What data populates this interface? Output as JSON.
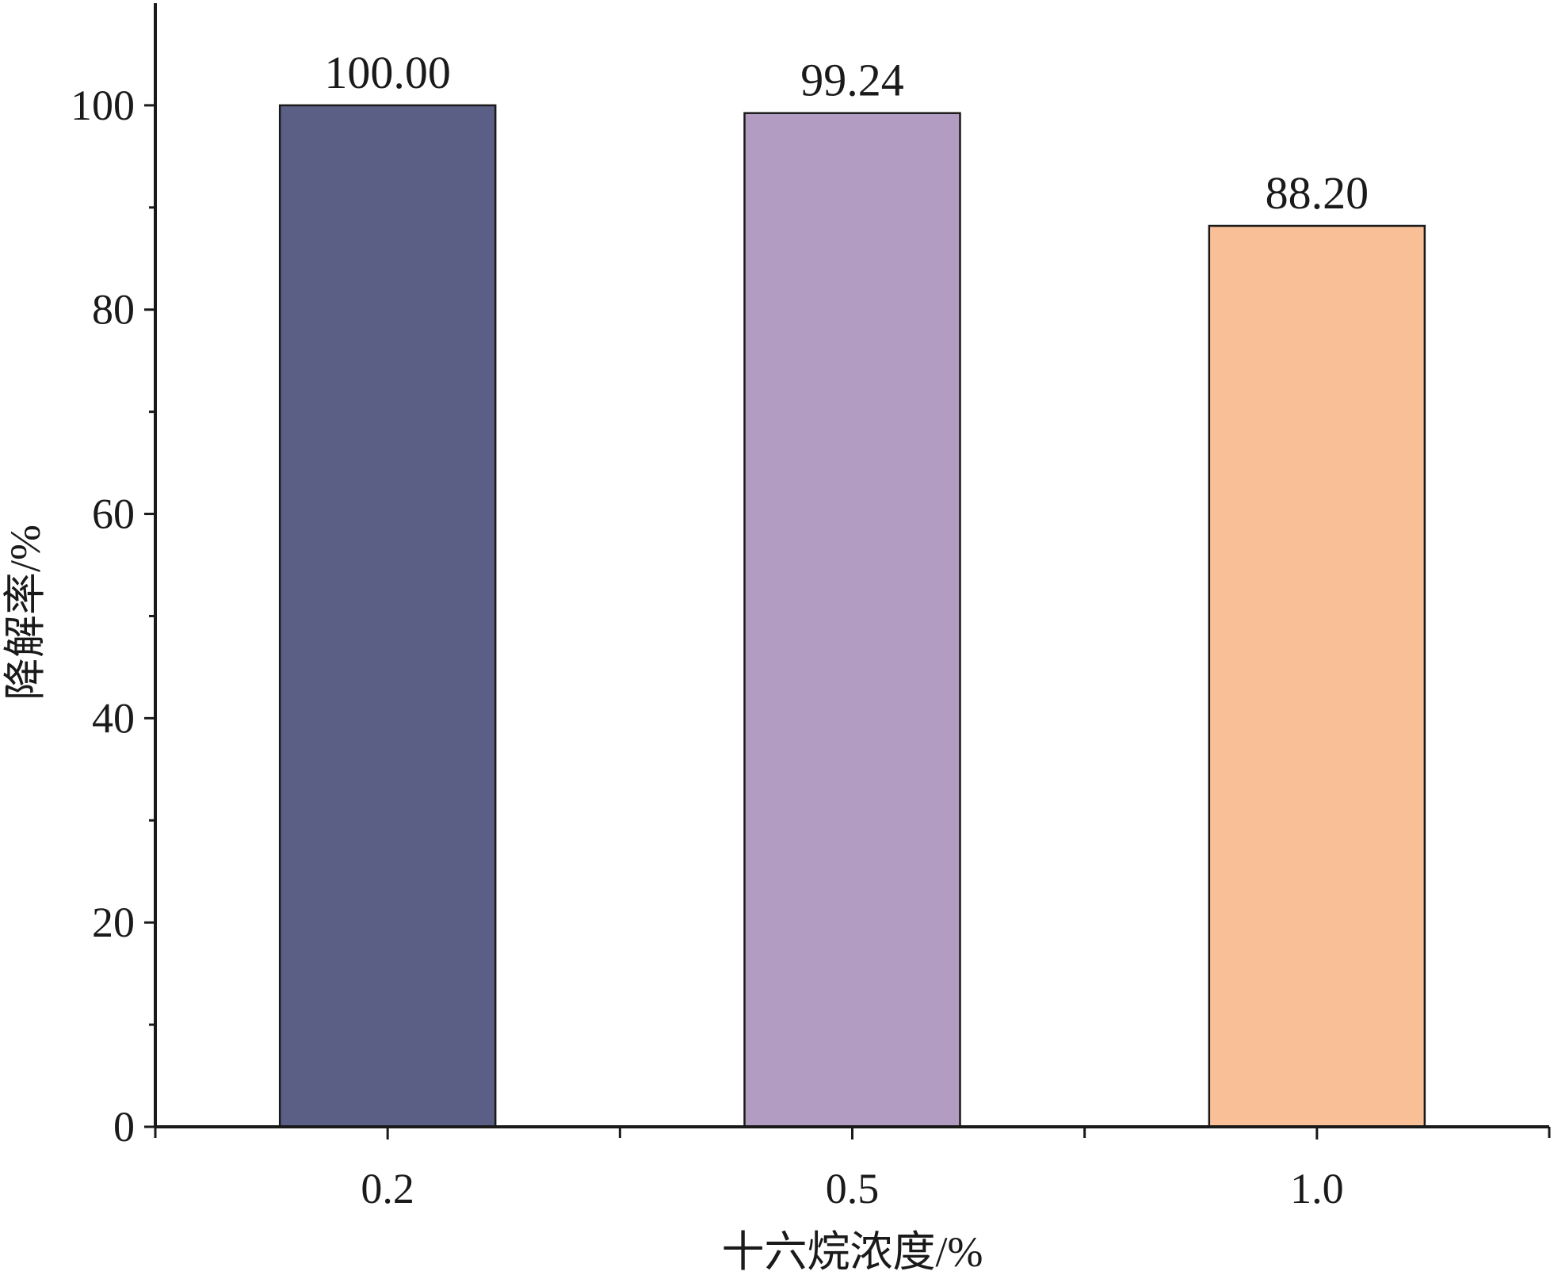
{
  "chart_data": {
    "type": "bar",
    "title": "",
    "xlabel": "十六烷浓度/%",
    "ylabel": "降解率/%",
    "categories": [
      "0.2",
      "0.5",
      "1.0"
    ],
    "values": [
      100.0,
      99.24,
      88.2
    ],
    "data_labels": [
      "100.00",
      "99.24",
      "88.20"
    ],
    "colors": [
      "#5b5f86",
      "#b39cc2",
      "#f9c098"
    ],
    "ylim": [
      0,
      110
    ],
    "yticks": [
      0,
      20,
      40,
      60,
      80,
      100
    ],
    "yticks_minor": [
      10,
      30,
      50,
      70,
      90
    ],
    "grid": false,
    "legend": "none"
  }
}
